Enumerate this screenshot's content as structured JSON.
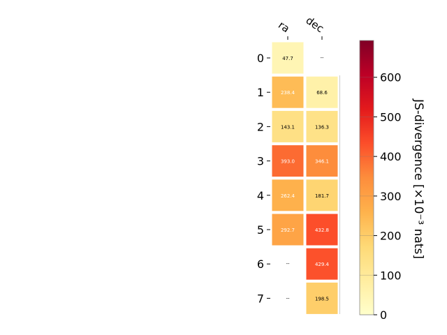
{
  "chart_data": {
    "type": "heatmap",
    "columns": [
      "ra",
      "dec"
    ],
    "rows": [
      "0",
      "1",
      "2",
      "3",
      "4",
      "5",
      "6",
      "7"
    ],
    "values": [
      [
        47.7,
        null
      ],
      [
        238.4,
        68.6
      ],
      [
        143.1,
        136.3
      ],
      [
        393.0,
        346.1
      ],
      [
        262.4,
        181.7
      ],
      [
        292.7,
        432.8
      ],
      [
        null,
        429.4
      ],
      [
        null,
        198.5
      ]
    ],
    "cell_labels": [
      [
        "47.7",
        "--"
      ],
      [
        "238.4",
        "68.6"
      ],
      [
        "143.1",
        "136.3"
      ],
      [
        "393.0",
        "346.1"
      ],
      [
        "262.4",
        "181.7"
      ],
      [
        "292.7",
        "432.8"
      ],
      [
        "--",
        "429.4"
      ],
      [
        "--",
        "198.5"
      ]
    ],
    "colorbar": {
      "label": "JS-divergence [×10⁻³ nats]",
      "range": [
        0,
        693
      ],
      "ticks": [
        "0",
        "100",
        "200",
        "300",
        "400",
        "500",
        "600"
      ],
      "tick_values": [
        0,
        100,
        200,
        300,
        400,
        500,
        600
      ],
      "colormap": "YlOrRd"
    }
  }
}
